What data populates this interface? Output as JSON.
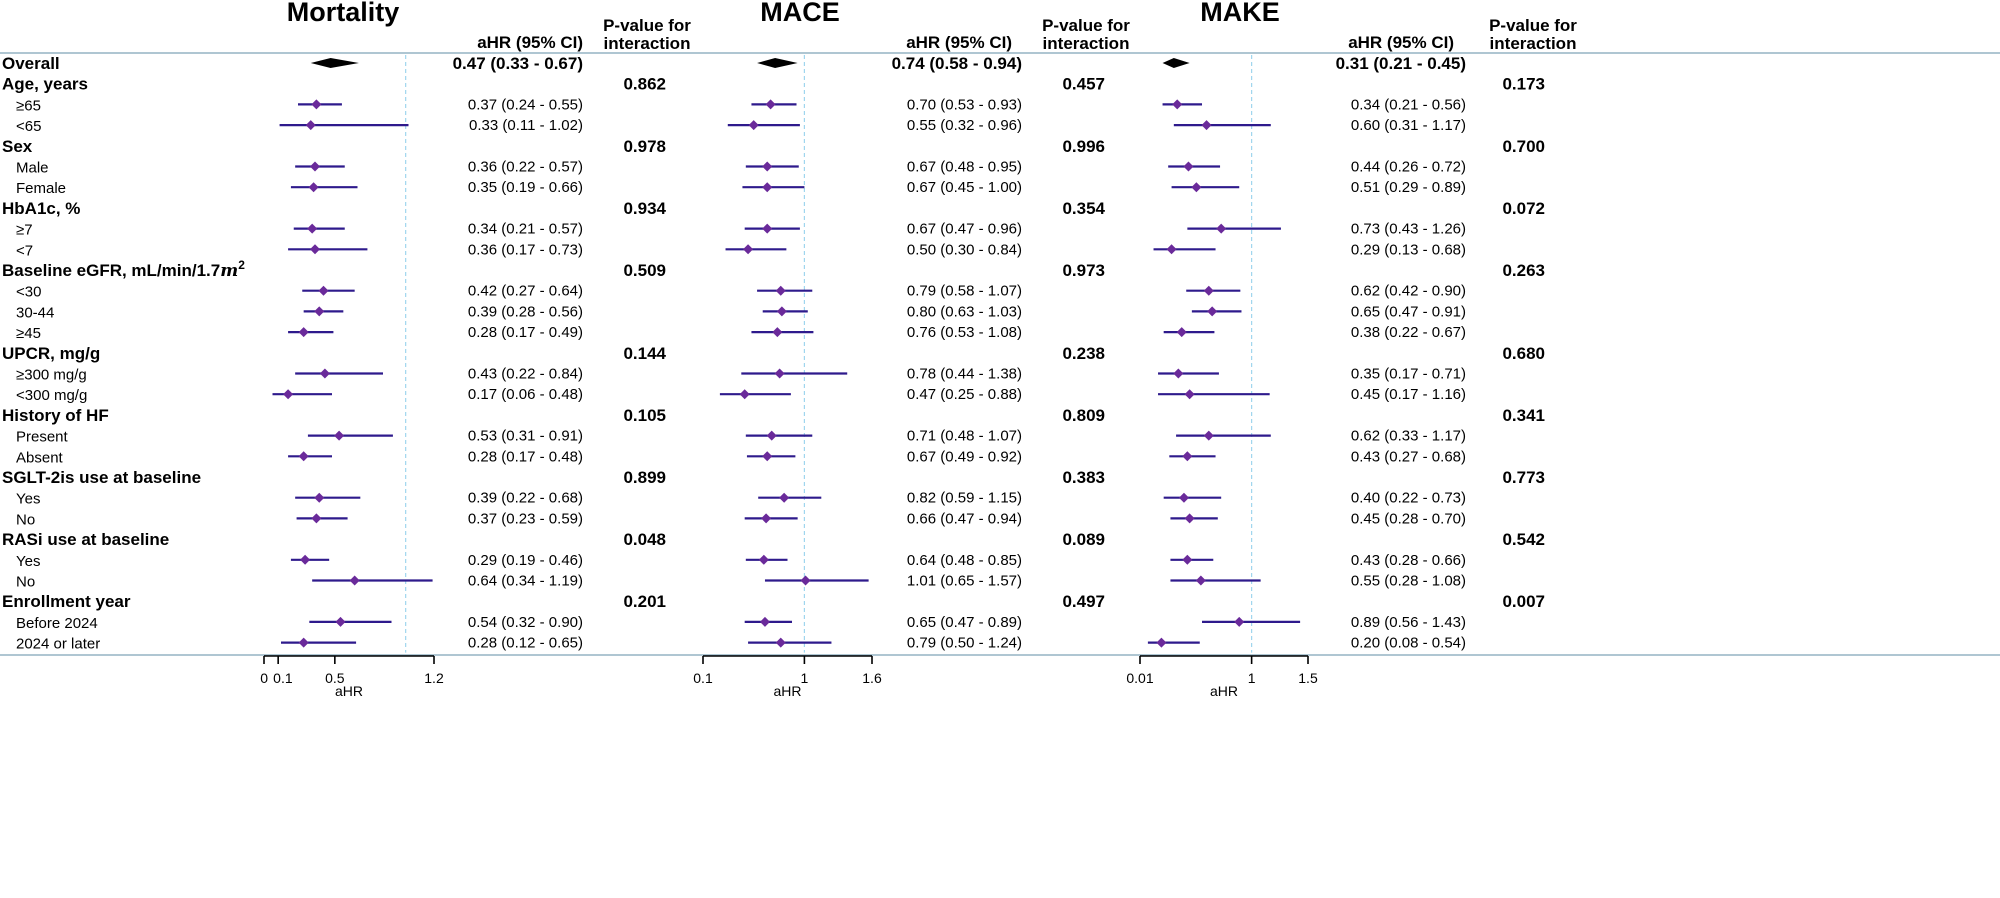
{
  "chart_data": {
    "type": "forest",
    "panels": [
      {
        "title": "Mortality",
        "ci_header": "aHR (95% CI)",
        "p_header": [
          "P-value for",
          "interaction"
        ],
        "xlabel": "aHR",
        "ticks": [
          0,
          0.1,
          0.5,
          1.2
        ],
        "tick_labels": [
          "0",
          "0.1",
          "0.5",
          "1.2"
        ],
        "xlim": [
          0,
          1.2
        ],
        "ref": 1
      },
      {
        "title": "MACE",
        "ci_header": "aHR (95% CI)",
        "p_header": [
          "P-value for",
          "interaction"
        ],
        "xlabel": "aHR",
        "ticks": [
          0.1,
          1,
          1.6
        ],
        "tick_labels": [
          "0.1",
          "1",
          "1.6"
        ],
        "xlim": [
          0.1,
          1.6
        ],
        "ref": 1
      },
      {
        "title": "MAKE",
        "ci_header": "aHR (95% CI)",
        "p_header": [
          "P-value for",
          "interaction"
        ],
        "xlabel": "aHR",
        "ticks": [
          0.01,
          1,
          1.5
        ],
        "tick_labels": [
          "0.01",
          "1",
          "1.5"
        ],
        "xlim": [
          0.01,
          1.5
        ],
        "ref": 1
      }
    ],
    "rows": [
      {
        "label": "Overall",
        "kind": "overall",
        "est": [
          [
            0.47,
            0.33,
            0.67
          ],
          [
            0.74,
            0.58,
            0.94
          ],
          [
            0.31,
            0.21,
            0.45
          ]
        ],
        "text": [
          "0.47 (0.33 - 0.67)",
          "0.74 (0.58 - 0.94)",
          "0.31 (0.21 - 0.45)"
        ]
      },
      {
        "label": "Age, years",
        "kind": "group",
        "p": [
          "0.862",
          "0.457",
          "0.173"
        ]
      },
      {
        "label": "≥65",
        "kind": "sub",
        "est": [
          [
            0.37,
            0.24,
            0.55
          ],
          [
            0.7,
            0.53,
            0.93
          ],
          [
            0.34,
            0.21,
            0.56
          ]
        ],
        "text": [
          "0.37 (0.24 - 0.55)",
          "0.70 (0.53 - 0.93)",
          "0.34 (0.21 - 0.56)"
        ]
      },
      {
        "label": "<65",
        "kind": "sub",
        "est": [
          [
            0.33,
            0.11,
            1.02
          ],
          [
            0.55,
            0.32,
            0.96
          ],
          [
            0.6,
            0.31,
            1.17
          ]
        ],
        "text": [
          "0.33 (0.11 - 1.02)",
          "0.55 (0.32 - 0.96)",
          "0.60 (0.31 - 1.17)"
        ]
      },
      {
        "label": "Sex",
        "kind": "group",
        "p": [
          "0.978",
          "0.996",
          "0.700"
        ]
      },
      {
        "label": "Male",
        "kind": "sub",
        "est": [
          [
            0.36,
            0.22,
            0.57
          ],
          [
            0.67,
            0.48,
            0.95
          ],
          [
            0.44,
            0.26,
            0.72
          ]
        ],
        "text": [
          "0.36 (0.22 - 0.57)",
          "0.67 (0.48 - 0.95)",
          "0.44 (0.26 - 0.72)"
        ]
      },
      {
        "label": "Female",
        "kind": "sub",
        "est": [
          [
            0.35,
            0.19,
            0.66
          ],
          [
            0.67,
            0.45,
            1.0
          ],
          [
            0.51,
            0.29,
            0.89
          ]
        ],
        "text": [
          "0.35 (0.19 - 0.66)",
          "0.67 (0.45 - 1.00)",
          "0.51 (0.29 - 0.89)"
        ]
      },
      {
        "label": "HbA1c, %",
        "kind": "group",
        "p": [
          "0.934",
          "0.354",
          "0.072"
        ]
      },
      {
        "label": "≥7",
        "kind": "sub",
        "est": [
          [
            0.34,
            0.21,
            0.57
          ],
          [
            0.67,
            0.47,
            0.96
          ],
          [
            0.73,
            0.43,
            1.26
          ]
        ],
        "text": [
          "0.34 (0.21 - 0.57)",
          "0.67 (0.47 - 0.96)",
          "0.73 (0.43 - 1.26)"
        ]
      },
      {
        "label": "<7",
        "kind": "sub",
        "est": [
          [
            0.36,
            0.17,
            0.73
          ],
          [
            0.5,
            0.3,
            0.84
          ],
          [
            0.29,
            0.13,
            0.68
          ]
        ],
        "text": [
          "0.36 (0.17 - 0.73)",
          "0.50 (0.30 - 0.84)",
          "0.29 (0.13 - 0.68)"
        ]
      },
      {
        "label": "Baseline eGFR, mL/min/1.7",
        "label_sup": "2",
        "label_m": "m",
        "kind": "group",
        "p": [
          "0.509",
          "0.973",
          "0.263"
        ]
      },
      {
        "label": "<30",
        "kind": "sub",
        "est": [
          [
            0.42,
            0.27,
            0.64
          ],
          [
            0.79,
            0.58,
            1.07
          ],
          [
            0.62,
            0.42,
            0.9
          ]
        ],
        "text": [
          "0.42 (0.27 - 0.64)",
          "0.79 (0.58 - 1.07)",
          "0.62 (0.42 - 0.90)"
        ]
      },
      {
        "label": "30-44",
        "kind": "sub",
        "est": [
          [
            0.39,
            0.28,
            0.56
          ],
          [
            0.8,
            0.63,
            1.03
          ],
          [
            0.65,
            0.47,
            0.91
          ]
        ],
        "text": [
          "0.39 (0.28 - 0.56)",
          "0.80 (0.63 - 1.03)",
          "0.65 (0.47 - 0.91)"
        ]
      },
      {
        "label": "≥45",
        "kind": "sub",
        "est": [
          [
            0.28,
            0.17,
            0.49
          ],
          [
            0.76,
            0.53,
            1.08
          ],
          [
            0.38,
            0.22,
            0.67
          ]
        ],
        "text": [
          "0.28 (0.17 - 0.49)",
          "0.76 (0.53 - 1.08)",
          "0.38 (0.22 - 0.67)"
        ]
      },
      {
        "label": "UPCR, mg/g",
        "kind": "group",
        "p": [
          "0.144",
          "0.238",
          "0.680"
        ]
      },
      {
        "label": "≥300 mg/g",
        "kind": "sub",
        "est": [
          [
            0.43,
            0.22,
            0.84
          ],
          [
            0.78,
            0.44,
            1.38
          ],
          [
            0.35,
            0.17,
            0.71
          ]
        ],
        "text": [
          "0.43 (0.22 - 0.84)",
          "0.78 (0.44 - 1.38)",
          "0.35 (0.17 - 0.71)"
        ]
      },
      {
        "label": "<300 mg/g",
        "kind": "sub",
        "est": [
          [
            0.17,
            0.06,
            0.48
          ],
          [
            0.47,
            0.25,
            0.88
          ],
          [
            0.45,
            0.17,
            1.16
          ]
        ],
        "text": [
          "0.17 (0.06 - 0.48)",
          "0.47 (0.25 - 0.88)",
          "0.45 (0.17 - 1.16)"
        ]
      },
      {
        "label": "History of HF",
        "kind": "group",
        "p": [
          "0.105",
          "0.809",
          "0.341"
        ]
      },
      {
        "label": "Present",
        "kind": "sub",
        "est": [
          [
            0.53,
            0.31,
            0.91
          ],
          [
            0.71,
            0.48,
            1.07
          ],
          [
            0.62,
            0.33,
            1.17
          ]
        ],
        "text": [
          "0.53 (0.31 - 0.91)",
          "0.71 (0.48 - 1.07)",
          "0.62 (0.33 - 1.17)"
        ]
      },
      {
        "label": "Absent",
        "kind": "sub",
        "est": [
          [
            0.28,
            0.17,
            0.48
          ],
          [
            0.67,
            0.49,
            0.92
          ],
          [
            0.43,
            0.27,
            0.68
          ]
        ],
        "text": [
          "0.28 (0.17 - 0.48)",
          "0.67 (0.49 - 0.92)",
          "0.43 (0.27 - 0.68)"
        ]
      },
      {
        "label": "SGLT-2is use at baseline",
        "kind": "group",
        "p": [
          "0.899",
          "0.383",
          "0.773"
        ]
      },
      {
        "label": "Yes",
        "kind": "sub",
        "est": [
          [
            0.39,
            0.22,
            0.68
          ],
          [
            0.82,
            0.59,
            1.15
          ],
          [
            0.4,
            0.22,
            0.73
          ]
        ],
        "text": [
          "0.39 (0.22 - 0.68)",
          "0.82 (0.59 - 1.15)",
          "0.40 (0.22 - 0.73)"
        ]
      },
      {
        "label": "No",
        "kind": "sub",
        "est": [
          [
            0.37,
            0.23,
            0.59
          ],
          [
            0.66,
            0.47,
            0.94
          ],
          [
            0.45,
            0.28,
            0.7
          ]
        ],
        "text": [
          "0.37 (0.23 - 0.59)",
          "0.66 (0.47 - 0.94)",
          "0.45 (0.28 - 0.70)"
        ]
      },
      {
        "label": "RASi use at baseline",
        "kind": "group",
        "p": [
          "0.048",
          "0.089",
          "0.542"
        ]
      },
      {
        "label": "Yes",
        "kind": "sub",
        "est": [
          [
            0.29,
            0.19,
            0.46
          ],
          [
            0.64,
            0.48,
            0.85
          ],
          [
            0.43,
            0.28,
            0.66
          ]
        ],
        "text": [
          "0.29 (0.19 - 0.46)",
          "0.64 (0.48 - 0.85)",
          "0.43 (0.28 - 0.66)"
        ]
      },
      {
        "label": "No",
        "kind": "sub",
        "est": [
          [
            0.64,
            0.34,
            1.19
          ],
          [
            1.01,
            0.65,
            1.57
          ],
          [
            0.55,
            0.28,
            1.08
          ]
        ],
        "text": [
          "0.64 (0.34 - 1.19)",
          "1.01 (0.65 - 1.57)",
          "0.55 (0.28 - 1.08)"
        ]
      },
      {
        "label": "Enrollment year",
        "kind": "group",
        "p": [
          "0.201",
          "0.497",
          "0.007"
        ]
      },
      {
        "label": "Before 2024",
        "kind": "sub",
        "est": [
          [
            0.54,
            0.32,
            0.9
          ],
          [
            0.65,
            0.47,
            0.89
          ],
          [
            0.89,
            0.56,
            1.43
          ]
        ],
        "text": [
          "0.54 (0.32 - 0.90)",
          "0.65 (0.47 - 0.89)",
          "0.89 (0.56 - 1.43)"
        ]
      },
      {
        "label": "2024 or later",
        "kind": "sub",
        "est": [
          [
            0.28,
            0.12,
            0.65
          ],
          [
            0.79,
            0.5,
            1.24
          ],
          [
            0.2,
            0.08,
            0.54
          ]
        ],
        "text": [
          "0.28 (0.12 - 0.65)",
          "0.79 (0.50 - 1.24)",
          "0.20 (0.08 - 0.54)"
        ]
      }
    ],
    "colors": {
      "ci_line": "#2e1a8c",
      "point": "#6a2a9a",
      "ref_line": "#9fd6ee",
      "rule": "#7fa4b8",
      "diamond": "#000000"
    }
  }
}
